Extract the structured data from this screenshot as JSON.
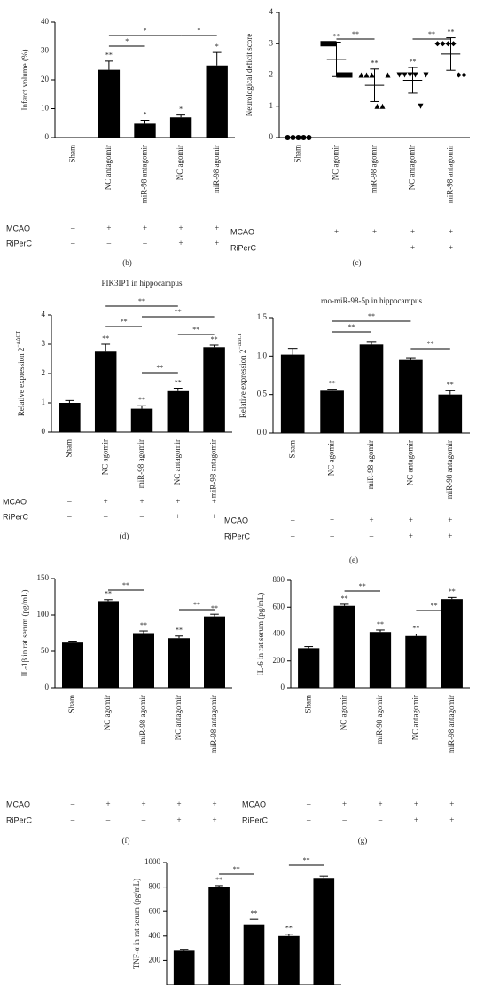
{
  "chart_data": [
    {
      "type": "bar",
      "panel": "(b)",
      "ylabel": "Infarct volume (%)",
      "ylim": [
        0,
        40
      ],
      "yticks": [
        0,
        10,
        20,
        30,
        40
      ],
      "categories": [
        "Sham",
        "NC antagomir",
        "miR-98 antagomir",
        "NC agomir",
        "miR-98 agomir"
      ],
      "values": [
        0,
        23.5,
        4.8,
        7,
        25
      ],
      "errors": [
        0,
        3,
        1.2,
        0.8,
        4.5
      ],
      "color": "#000000",
      "significance": [
        null,
        "**",
        "*",
        "*",
        "*"
      ],
      "comparisons": [
        {
          "between": [
            1,
            2
          ],
          "label": "*"
        },
        {
          "between": [
            1,
            3
          ],
          "label": "*"
        },
        {
          "between": [
            3,
            4
          ],
          "label": "*"
        }
      ],
      "conditions": [
        {
          "name": "MCAO",
          "marks": [
            "–",
            "+",
            "+",
            "+",
            "+"
          ]
        },
        {
          "name": "RiPerC",
          "marks": [
            "–",
            "–",
            "–",
            "+",
            "+"
          ]
        }
      ]
    },
    {
      "type": "dot",
      "panel": "(c)",
      "ylabel": "Neurological deficit score",
      "ylim": [
        0,
        4
      ],
      "yticks": [
        0,
        1,
        2,
        3,
        4
      ],
      "categories": [
        "Sham",
        "NC agomir",
        "miR-98 agomir",
        "NC antagomir",
        "miR-98 antagomir"
      ],
      "markers": [
        "circle",
        "square",
        "triangle",
        "inverted-triangle",
        "diamond"
      ],
      "points": [
        [
          0,
          0,
          0,
          0,
          0
        ],
        [
          3,
          3,
          3,
          2,
          2,
          2
        ],
        [
          2,
          2,
          2,
          1,
          1,
          2
        ],
        [
          2,
          2,
          2,
          2,
          1,
          2
        ],
        [
          3,
          3,
          3,
          3,
          2,
          2
        ]
      ],
      "values": [
        0,
        2.5,
        1.67,
        1.83,
        2.67
      ],
      "errors": [
        0,
        0.55,
        0.52,
        0.41,
        0.52
      ],
      "color": "#000000",
      "significance": [
        null,
        "**",
        "**",
        "**",
        "**"
      ],
      "comparisons": [
        {
          "between": [
            1,
            2
          ],
          "label": "**"
        },
        {
          "between": [
            3,
            4
          ],
          "label": "**"
        }
      ],
      "conditions": [
        {
          "name": "MCAO",
          "marks": [
            "–",
            "+",
            "+",
            "+",
            "+"
          ]
        },
        {
          "name": "RiPerC",
          "marks": [
            "–",
            "–",
            "–",
            "+",
            "+"
          ]
        }
      ]
    },
    {
      "type": "bar",
      "panel": "(d)",
      "title": "PIK3IP1 in hippocampus",
      "ylabel": "Relative expression 2",
      "ylabel_sup": "−ΔΔCT",
      "ylim": [
        0,
        4
      ],
      "yticks": [
        0,
        1,
        2,
        3,
        4
      ],
      "categories": [
        "Sham",
        "NC agomir",
        "miR-98 agomir",
        "NC antagomir",
        "miR-98 antagomir"
      ],
      "values": [
        1.0,
        2.75,
        0.8,
        1.4,
        2.9
      ],
      "errors": [
        0.08,
        0.25,
        0.1,
        0.1,
        0.07
      ],
      "color": "#000000",
      "significance": [
        null,
        "**",
        "**",
        "**",
        "**"
      ],
      "comparisons": [
        {
          "between": [
            1,
            3
          ],
          "label": "**"
        },
        {
          "between": [
            2,
            4
          ],
          "label": "**"
        },
        {
          "between": [
            1,
            2
          ],
          "label": "**"
        },
        {
          "between": [
            3,
            4
          ],
          "label": "**"
        },
        {
          "between": [
            2,
            3
          ],
          "label": "**"
        }
      ],
      "conditions": [
        {
          "name": "MCAO",
          "marks": [
            "–",
            "+",
            "+",
            "+",
            "+"
          ]
        },
        {
          "name": "RiPerC",
          "marks": [
            "–",
            "–",
            "–",
            "+",
            "+"
          ]
        }
      ]
    },
    {
      "type": "bar",
      "panel": "(e)",
      "title": "rno-miR-98-5p in hippocampus",
      "ylabel": "Relative expression 2",
      "ylabel_sup": "−ΔΔCT",
      "ylim": [
        0,
        1.5
      ],
      "yticks": [
        {
          "value": 0,
          "label": "0.0"
        },
        0.5,
        {
          "value": 1,
          "label": "1.0"
        },
        1.5
      ],
      "categories": [
        "Sham",
        "NC agomir",
        "miR-98 agomir",
        "NC antagomir",
        "miR-98 antagomir"
      ],
      "values": [
        1.02,
        0.55,
        1.15,
        0.95,
        0.5
      ],
      "errors": [
        0.08,
        0.02,
        0.04,
        0.03,
        0.05
      ],
      "color": "#000000",
      "significance": [
        null,
        "**",
        null,
        null,
        "**"
      ],
      "comparisons": [
        {
          "between": [
            1,
            3
          ],
          "label": "**"
        },
        {
          "between": [
            1,
            2
          ],
          "label": "**"
        },
        {
          "between": [
            3,
            4
          ],
          "label": "**"
        }
      ],
      "conditions": [
        {
          "name": "MCAO",
          "marks": [
            "–",
            "+",
            "+",
            "+",
            "+"
          ]
        },
        {
          "name": "RiPerC",
          "marks": [
            "–",
            "–",
            "–",
            "+",
            "+"
          ]
        }
      ]
    },
    {
      "type": "bar",
      "panel": "(f)",
      "ylabel": "IL-1β in rat serum (pg/mL)",
      "ylim": [
        0,
        150
      ],
      "yticks": [
        0,
        50,
        100,
        150
      ],
      "categories": [
        "Sham",
        "NC agomir",
        "miR-98 agomir",
        "NC antagomir",
        "miR-98 antagomir"
      ],
      "values": [
        62,
        119,
        75,
        68,
        98
      ],
      "errors": [
        2,
        2,
        3,
        3,
        3
      ],
      "color": "#000000",
      "significance": [
        null,
        "**",
        "**",
        "**",
        "**"
      ],
      "comparisons": [
        {
          "between": [
            1,
            2
          ],
          "label": "**"
        },
        {
          "between": [
            3,
            4
          ],
          "label": "**"
        }
      ],
      "conditions": [
        {
          "name": "MCAO",
          "marks": [
            "–",
            "+",
            "+",
            "+",
            "+"
          ]
        },
        {
          "name": "RiPerC",
          "marks": [
            "–",
            "–",
            "–",
            "+",
            "+"
          ]
        }
      ]
    },
    {
      "type": "bar",
      "panel": "(g)",
      "ylabel": "IL-6 in rat serum (pg/mL)",
      "ylim": [
        0,
        800
      ],
      "yticks": [
        0,
        200,
        400,
        600,
        800
      ],
      "categories": [
        "Sham",
        "NC agomir",
        "miR-98 agomir",
        "NC antagomir",
        "miR-98 antagomir"
      ],
      "values": [
        295,
        610,
        415,
        385,
        660
      ],
      "errors": [
        12,
        12,
        15,
        15,
        12
      ],
      "color": "#000000",
      "significance": [
        null,
        "**",
        "**",
        "**",
        "**"
      ],
      "comparisons": [
        {
          "between": [
            1,
            2
          ],
          "label": "**"
        },
        {
          "between": [
            3,
            4
          ],
          "label": "**"
        }
      ],
      "conditions": [
        {
          "name": "MCAO",
          "marks": [
            "–",
            "+",
            "+",
            "+",
            "+"
          ]
        },
        {
          "name": "RiPerC",
          "marks": [
            "–",
            "–",
            "–",
            "+",
            "+"
          ]
        }
      ]
    },
    {
      "type": "bar",
      "ylabel": "TNF-α in rat serum (pg/mL)",
      "ylim": [
        0,
        1000
      ],
      "yticks": [
        200,
        400,
        600,
        800,
        1000
      ],
      "values": [
        280,
        800,
        495,
        400,
        875
      ],
      "errors": [
        12,
        12,
        40,
        15,
        15
      ],
      "color": "#000000",
      "significance": [
        null,
        "**",
        "**",
        "**",
        null
      ],
      "comparisons": [
        {
          "between": [
            1,
            2
          ],
          "label": "**"
        },
        {
          "between": [
            3,
            4
          ],
          "label": "**"
        }
      ]
    }
  ]
}
